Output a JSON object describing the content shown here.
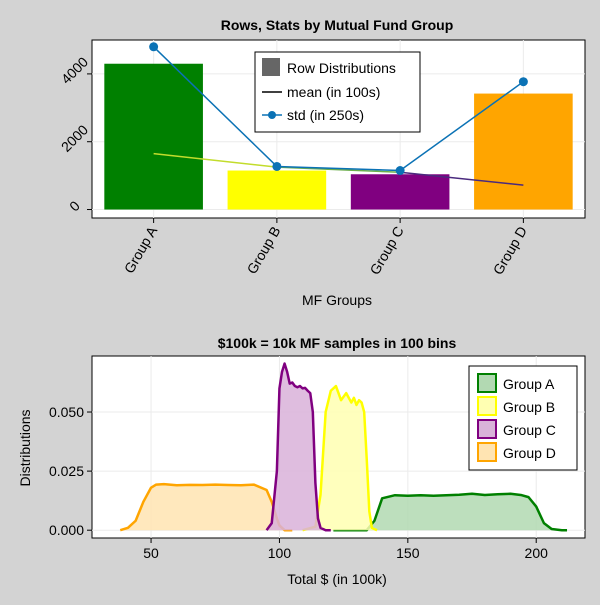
{
  "chart_data": [
    {
      "type": "bar",
      "title": "Rows, Stats by Mutual Fund Group",
      "xlabel": "MF Groups",
      "ylabel": "",
      "ylim": [
        -250,
        5000
      ],
      "yticks": [
        0,
        2000,
        4000
      ],
      "ytick_labels": [
        "0",
        "2000",
        "4000"
      ],
      "categories": [
        "Group A",
        "Group B",
        "Group C",
        "Group D"
      ],
      "grid": true,
      "legend_position": "top-center",
      "series": [
        {
          "name": "Row Distributions",
          "kind": "bar",
          "values": [
            4300,
            1150,
            1040,
            3420
          ],
          "colors": [
            "#008000",
            "#ffff00",
            "#800080",
            "#ffa500"
          ],
          "legend_color": "#666666"
        },
        {
          "name": "mean (in 100s)",
          "kind": "line",
          "values": [
            1650,
            1250,
            1100,
            720
          ],
          "colors": [
            "#c2dc2c",
            "#6cae4c",
            "#4a2a7e",
            "#2c2c5e"
          ]
        },
        {
          "name": "std (in 250s)",
          "kind": "line-marker",
          "values": [
            4800,
            1270,
            1150,
            3770
          ],
          "color": "#0b72b5"
        }
      ]
    },
    {
      "type": "area",
      "title": "$100k = 10k MF samples in 100 bins",
      "xlabel": "Total $ (in 100k)",
      "ylabel": "Distributions",
      "xlim": [
        27,
        219
      ],
      "ylim": [
        -0.0033,
        0.0737
      ],
      "xticks": [
        50,
        100,
        150,
        200
      ],
      "xtick_labels": [
        "50",
        "100",
        "150",
        "200"
      ],
      "yticks": [
        0,
        0.025,
        0.05
      ],
      "ytick_labels": [
        "0.000",
        "0.025",
        "0.050"
      ],
      "grid": true,
      "legend_position": "top-right",
      "series": [
        {
          "name": "Group A",
          "color": "#008000",
          "fill": "#b2d9b2",
          "x": [
            121,
            134,
            137,
            140,
            145,
            150,
            155,
            160,
            165,
            170,
            175,
            180,
            185,
            190,
            194,
            197,
            200,
            203,
            206,
            210,
            212
          ],
          "y": [
            0,
            0,
            0.004,
            0.0135,
            0.0148,
            0.0146,
            0.0148,
            0.0146,
            0.0148,
            0.015,
            0.0154,
            0.0149,
            0.0152,
            0.0154,
            0.0149,
            0.014,
            0.01,
            0.003,
            0.0005,
            0,
            0
          ]
        },
        {
          "name": "Group B",
          "color": "#ffff00",
          "fill": "#ffffb2",
          "x": [
            109,
            114,
            116,
            118,
            120,
            122,
            124,
            126,
            128,
            129,
            130,
            131,
            132,
            133,
            134,
            135,
            136,
            138
          ],
          "y": [
            0,
            0.0015,
            0.015,
            0.05,
            0.059,
            0.061,
            0.055,
            0.058,
            0.054,
            0.056,
            0.053,
            0.055,
            0.054,
            0.05,
            0.03,
            0.008,
            0.001,
            0
          ]
        },
        {
          "name": "Group C",
          "color": "#800080",
          "fill": "#d9b2d9",
          "x": [
            95,
            97,
            99,
            100,
            101,
            102,
            103,
            104,
            105,
            106,
            107,
            108,
            109,
            110,
            111,
            112,
            113,
            114,
            115,
            116,
            118,
            120
          ],
          "y": [
            0,
            0.003,
            0.025,
            0.06,
            0.067,
            0.0705,
            0.067,
            0.062,
            0.0625,
            0.061,
            0.0605,
            0.061,
            0.06,
            0.0602,
            0.059,
            0.058,
            0.05,
            0.02,
            0.005,
            0.001,
            0,
            0
          ]
        },
        {
          "name": "Group D",
          "color": "#ffa500",
          "fill": "#ffe4b2",
          "x": [
            38,
            41,
            44,
            47,
            50,
            52,
            55,
            60,
            65,
            70,
            75,
            80,
            85,
            90,
            95,
            97,
            99,
            100,
            102,
            105
          ],
          "y": [
            0,
            0.001,
            0.004,
            0.012,
            0.018,
            0.0193,
            0.0195,
            0.019,
            0.0192,
            0.0191,
            0.0193,
            0.0191,
            0.019,
            0.0193,
            0.017,
            0.012,
            0.005,
            0.002,
            0,
            0
          ]
        }
      ]
    }
  ]
}
